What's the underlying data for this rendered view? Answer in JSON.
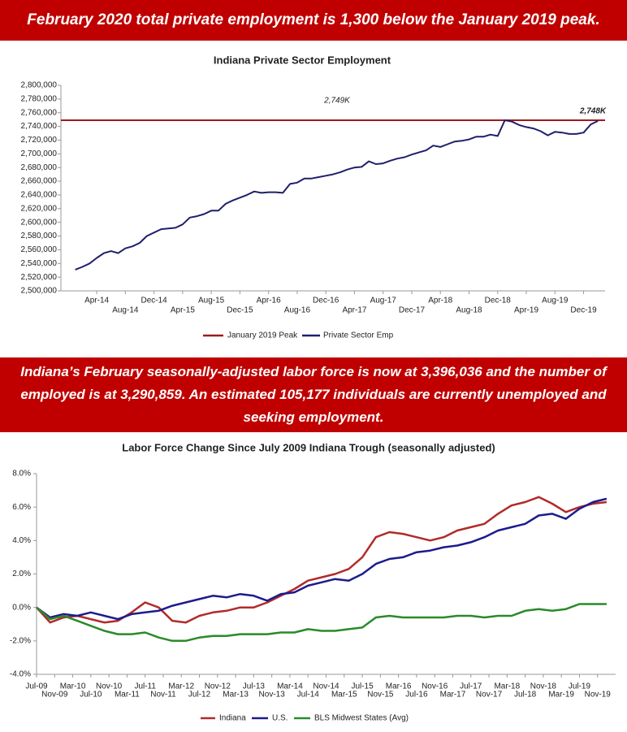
{
  "banners": [
    "February 2020 total private employment is 1,300 below the January 2019 peak.",
    "Indiana’s February seasonally-adjusted labor force is now at 3,396,036 and the number of employed is at 3,290,859. An estimated 105,177 individuals are currently unemployed and seeking employment."
  ],
  "chart_data": [
    {
      "type": "line",
      "title": "Indiana Private Sector Employment",
      "x": [
        "2014-01",
        "2014-02",
        "2014-03",
        "2014-04",
        "2014-05",
        "2014-06",
        "2014-07",
        "2014-08",
        "2014-09",
        "2014-10",
        "2014-11",
        "2014-12",
        "2015-01",
        "2015-02",
        "2015-03",
        "2015-04",
        "2015-05",
        "2015-06",
        "2015-07",
        "2015-08",
        "2015-09",
        "2015-10",
        "2015-11",
        "2015-12",
        "2016-01",
        "2016-02",
        "2016-03",
        "2016-04",
        "2016-05",
        "2016-06",
        "2016-07",
        "2016-08",
        "2016-09",
        "2016-10",
        "2016-11",
        "2016-12",
        "2017-01",
        "2017-02",
        "2017-03",
        "2017-04",
        "2017-05",
        "2017-06",
        "2017-07",
        "2017-08",
        "2017-09",
        "2017-10",
        "2017-11",
        "2017-12",
        "2018-01",
        "2018-02",
        "2018-03",
        "2018-04",
        "2018-05",
        "2018-06",
        "2018-07",
        "2018-08",
        "2018-09",
        "2018-10",
        "2018-11",
        "2018-12",
        "2019-01",
        "2019-02",
        "2019-03",
        "2019-04",
        "2019-05",
        "2019-06",
        "2019-07",
        "2019-08",
        "2019-09",
        "2019-10",
        "2019-11",
        "2019-12",
        "2020-01",
        "2020-02"
      ],
      "series": [
        {
          "name": "Private Sector Emp",
          "color": "#1f1f6b",
          "values": [
            2531000,
            2535000,
            2540000,
            2548000,
            2555000,
            2558000,
            2555000,
            2562000,
            2565000,
            2570000,
            2580000,
            2585000,
            2590000,
            2591000,
            2592000,
            2597000,
            2607000,
            2609000,
            2612000,
            2617000,
            2617000,
            2627000,
            2632000,
            2636000,
            2640000,
            2645000,
            2643000,
            2644000,
            2644000,
            2643000,
            2656000,
            2658000,
            2664000,
            2664000,
            2666000,
            2668000,
            2670000,
            2673000,
            2677000,
            2680000,
            2681000,
            2689000,
            2685000,
            2686000,
            2690000,
            2693000,
            2695000,
            2699000,
            2702000,
            2705000,
            2712000,
            2710000,
            2714000,
            2718000,
            2719000,
            2721000,
            2725000,
            2725000,
            2728000,
            2726000,
            2749000,
            2747000,
            2742000,
            2739000,
            2737000,
            2733000,
            2727000,
            2732000,
            2731000,
            2729000,
            2729000,
            2731000,
            2743000,
            2748000
          ]
        }
      ],
      "peak": {
        "name": "January 2019 Peak",
        "color": "#9e1b1b",
        "value": 2749000
      },
      "annotations": [
        "2,749K",
        "2,748K"
      ],
      "xlim": [
        "2013-11",
        "2020-03"
      ],
      "xticks": [
        {
          "value": "2014-04",
          "label": "Apr-14"
        },
        {
          "value": "2014-08",
          "label": "Aug-14"
        },
        {
          "value": "2014-12",
          "label": "Dec-14"
        },
        {
          "value": "2015-04",
          "label": "Apr-15"
        },
        {
          "value": "2015-08",
          "label": "Aug-15"
        },
        {
          "value": "2015-12",
          "label": "Dec-15"
        },
        {
          "value": "2016-04",
          "label": "Apr-16"
        },
        {
          "value": "2016-08",
          "label": "Aug-16"
        },
        {
          "value": "2016-12",
          "label": "Dec-16"
        },
        {
          "value": "2017-04",
          "label": "Apr-17"
        },
        {
          "value": "2017-08",
          "label": "Aug-17"
        },
        {
          "value": "2017-12",
          "label": "Dec-17"
        },
        {
          "value": "2018-04",
          "label": "Apr-18"
        },
        {
          "value": "2018-08",
          "label": "Aug-18"
        },
        {
          "value": "2018-12",
          "label": "Dec-18"
        },
        {
          "value": "2019-04",
          "label": "Apr-19"
        },
        {
          "value": "2019-08",
          "label": "Aug-19"
        },
        {
          "value": "2019-12",
          "label": "Dec-19"
        }
      ],
      "ylim": [
        2500000,
        2800000
      ],
      "yticks": [
        {
          "value": 2500000,
          "label": "2,500,000"
        },
        {
          "value": 2520000,
          "label": "2,520,000"
        },
        {
          "value": 2540000,
          "label": "2,540,000"
        },
        {
          "value": 2560000,
          "label": "2,560,000"
        },
        {
          "value": 2580000,
          "label": "2,580,000"
        },
        {
          "value": 2600000,
          "label": "2,600,000"
        },
        {
          "value": 2620000,
          "label": "2,620,000"
        },
        {
          "value": 2640000,
          "label": "2,640,000"
        },
        {
          "value": 2660000,
          "label": "2,660,000"
        },
        {
          "value": 2680000,
          "label": "2,680,000"
        },
        {
          "value": 2700000,
          "label": "2,700,000"
        },
        {
          "value": 2720000,
          "label": "2,720,000"
        },
        {
          "value": 2740000,
          "label": "2,740,000"
        },
        {
          "value": 2760000,
          "label": "2,760,000"
        },
        {
          "value": 2780000,
          "label": "2,780,000"
        },
        {
          "value": 2800000,
          "label": "2,800,000"
        }
      ],
      "grid": false
    },
    {
      "type": "line",
      "title": "Labor Force Change Since July 2009 Indiana Trough (seasonally adjusted)",
      "x": [
        "2009-07",
        "2009-10",
        "2010-01",
        "2010-04",
        "2010-07",
        "2010-10",
        "2011-01",
        "2011-04",
        "2011-07",
        "2011-10",
        "2012-01",
        "2012-04",
        "2012-07",
        "2012-10",
        "2013-01",
        "2013-04",
        "2013-07",
        "2013-10",
        "2014-01",
        "2014-04",
        "2014-07",
        "2014-10",
        "2015-01",
        "2015-04",
        "2015-07",
        "2015-10",
        "2016-01",
        "2016-04",
        "2016-07",
        "2016-10",
        "2017-01",
        "2017-04",
        "2017-07",
        "2017-10",
        "2018-01",
        "2018-04",
        "2018-07",
        "2018-10",
        "2019-01",
        "2019-04",
        "2019-07",
        "2019-10",
        "2020-01"
      ],
      "series": [
        {
          "name": "Indiana",
          "color": "#b22a2a",
          "values": [
            0,
            -0.9,
            -0.6,
            -0.5,
            -0.7,
            -0.9,
            -0.8,
            -0.3,
            0.3,
            0.0,
            -0.8,
            -0.9,
            -0.5,
            -0.3,
            -0.2,
            0.0,
            0.0,
            0.3,
            0.7,
            1.1,
            1.6,
            1.8,
            2.0,
            2.3,
            3.0,
            4.2,
            4.5,
            4.4,
            4.2,
            4.0,
            4.2,
            4.6,
            4.8,
            5.0,
            5.6,
            6.1,
            6.3,
            6.6,
            6.2,
            5.7,
            6.0,
            6.2,
            6.3
          ]
        },
        {
          "name": "U.S.",
          "color": "#1c1c8c",
          "values": [
            0,
            -0.6,
            -0.4,
            -0.5,
            -0.3,
            -0.5,
            -0.7,
            -0.4,
            -0.3,
            -0.2,
            0.1,
            0.3,
            0.5,
            0.7,
            0.6,
            0.8,
            0.7,
            0.4,
            0.8,
            0.9,
            1.3,
            1.5,
            1.7,
            1.6,
            2.0,
            2.6,
            2.9,
            3.0,
            3.3,
            3.4,
            3.6,
            3.7,
            3.9,
            4.2,
            4.6,
            4.8,
            5.0,
            5.5,
            5.6,
            5.3,
            5.9,
            6.3,
            6.5
          ]
        },
        {
          "name": "BLS Midwest States (Avg)",
          "color": "#2a8a2a",
          "values": [
            0,
            -0.7,
            -0.5,
            -0.8,
            -1.1,
            -1.4,
            -1.6,
            -1.6,
            -1.5,
            -1.8,
            -2.0,
            -2.0,
            -1.8,
            -1.7,
            -1.7,
            -1.6,
            -1.6,
            -1.6,
            -1.5,
            -1.5,
            -1.3,
            -1.4,
            -1.4,
            -1.3,
            -1.2,
            -0.6,
            -0.5,
            -0.6,
            -0.6,
            -0.6,
            -0.6,
            -0.5,
            -0.5,
            -0.6,
            -0.5,
            -0.5,
            -0.2,
            -0.1,
            -0.2,
            -0.1,
            0.2,
            0.2,
            0.2
          ]
        }
      ],
      "xlim": [
        "2009-07",
        "2020-03"
      ],
      "xticks": [
        {
          "value": "2009-07",
          "label": "Jul-09"
        },
        {
          "value": "2009-11",
          "label": "Nov-09"
        },
        {
          "value": "2010-03",
          "label": "Mar-10"
        },
        {
          "value": "2010-07",
          "label": "Jul-10"
        },
        {
          "value": "2010-11",
          "label": "Nov-10"
        },
        {
          "value": "2011-03",
          "label": "Mar-11"
        },
        {
          "value": "2011-07",
          "label": "Jul-11"
        },
        {
          "value": "2011-11",
          "label": "Nov-11"
        },
        {
          "value": "2012-03",
          "label": "Mar-12"
        },
        {
          "value": "2012-07",
          "label": "Jul-12"
        },
        {
          "value": "2012-11",
          "label": "Nov-12"
        },
        {
          "value": "2013-03",
          "label": "Mar-13"
        },
        {
          "value": "2013-07",
          "label": "Jul-13"
        },
        {
          "value": "2013-11",
          "label": "Nov-13"
        },
        {
          "value": "2014-03",
          "label": "Mar-14"
        },
        {
          "value": "2014-07",
          "label": "Jul-14"
        },
        {
          "value": "2014-11",
          "label": "Nov-14"
        },
        {
          "value": "2015-03",
          "label": "Mar-15"
        },
        {
          "value": "2015-07",
          "label": "Jul-15"
        },
        {
          "value": "2015-11",
          "label": "Nov-15"
        },
        {
          "value": "2016-03",
          "label": "Mar-16"
        },
        {
          "value": "2016-07",
          "label": "Jul-16"
        },
        {
          "value": "2016-11",
          "label": "Nov-16"
        },
        {
          "value": "2017-03",
          "label": "Mar-17"
        },
        {
          "value": "2017-07",
          "label": "Jul-17"
        },
        {
          "value": "2017-11",
          "label": "Nov-17"
        },
        {
          "value": "2018-03",
          "label": "Mar-18"
        },
        {
          "value": "2018-07",
          "label": "Jul-18"
        },
        {
          "value": "2018-11",
          "label": "Nov-18"
        },
        {
          "value": "2019-03",
          "label": "Mar-19"
        },
        {
          "value": "2019-07",
          "label": "Jul-19"
        },
        {
          "value": "2019-11",
          "label": "Nov-19"
        }
      ],
      "ylim": [
        -4,
        8
      ],
      "yticks": [
        {
          "value": -4,
          "label": "-4.0%"
        },
        {
          "value": -2,
          "label": "-2.0%"
        },
        {
          "value": 0,
          "label": "0.0%"
        },
        {
          "value": 2,
          "label": "2.0%"
        },
        {
          "value": 4,
          "label": "4.0%"
        },
        {
          "value": 6,
          "label": "6.0%"
        },
        {
          "value": 8,
          "label": "8.0%"
        }
      ],
      "grid": false
    }
  ]
}
